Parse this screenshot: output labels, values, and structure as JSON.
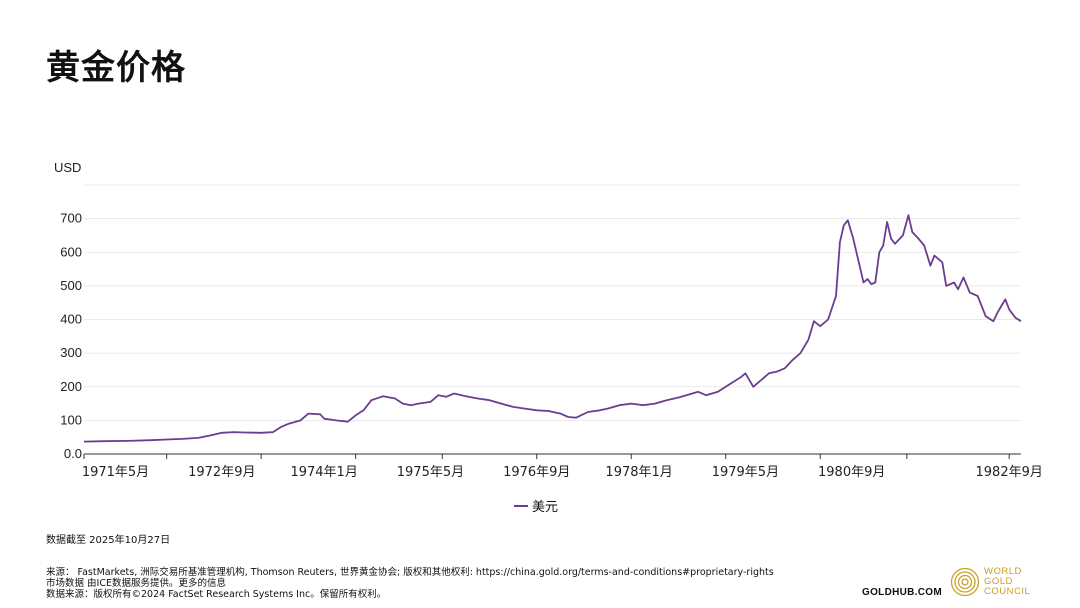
{
  "page": {
    "title": "黄金价格",
    "as_of": "数据截至 2025年10月27日",
    "footer_lines": [
      "来源： FastMarkets, 洲际交易所基准管理机构, Thomson Reuters, 世界黄金协会; 版权和其他权利: https://china.gold.org/terms-and-conditions#proprietary-rights",
      "市场数据 由ICE数据服务提供。更多的信息",
      "数据来源：版权所有©2024 FactSet Research Systems Inc。保留所有权利。"
    ],
    "brand_site": "GOLDHUB.COM",
    "logo_text": [
      "WORLD",
      "GOLD",
      "COUNCIL"
    ],
    "line_color": "#6b3d8f",
    "logo_color": "#c9a227"
  },
  "chart_data": {
    "type": "line",
    "title": "黄金价格",
    "ylabel": "USD",
    "xlabel": "",
    "ylim": [
      0,
      800
    ],
    "yticks": [
      0,
      100,
      200,
      300,
      400,
      500,
      600,
      700
    ],
    "ytick_labels": [
      "0.0",
      "100",
      "200",
      "300",
      "400",
      "500",
      "600",
      "700"
    ],
    "xlim": [
      1970.95,
      1982.85
    ],
    "x_tick_marks": [
      1970.95,
      1972.0,
      1973.2,
      1974.4,
      1975.5,
      1976.7,
      1977.9,
      1979.1,
      1980.3,
      1981.4,
      1982.7
    ],
    "x_labels": [
      {
        "x": 1971.35,
        "label": "1971年5月"
      },
      {
        "x": 1972.7,
        "label": "1972年9月"
      },
      {
        "x": 1974.0,
        "label": "1974年1月"
      },
      {
        "x": 1975.35,
        "label": "1975年5月"
      },
      {
        "x": 1976.7,
        "label": "1976年9月"
      },
      {
        "x": 1978.0,
        "label": "1978年1月"
      },
      {
        "x": 1979.35,
        "label": "1979年5月"
      },
      {
        "x": 1980.7,
        "label": "1980年9月"
      },
      {
        "x": 1982.7,
        "label": "1982年9月"
      }
    ],
    "grid": "horizontal",
    "legend_position": "bottom-center",
    "series": [
      {
        "name": "美元",
        "color": "#6b3d8f",
        "points": [
          [
            1970.95,
            37
          ],
          [
            1971.2,
            38
          ],
          [
            1971.5,
            39
          ],
          [
            1971.8,
            41
          ],
          [
            1972.0,
            43
          ],
          [
            1972.2,
            45
          ],
          [
            1972.4,
            48
          ],
          [
            1972.55,
            55
          ],
          [
            1972.7,
            63
          ],
          [
            1972.85,
            65
          ],
          [
            1973.0,
            64
          ],
          [
            1973.2,
            63
          ],
          [
            1973.35,
            65
          ],
          [
            1973.45,
            80
          ],
          [
            1973.55,
            90
          ],
          [
            1973.7,
            100
          ],
          [
            1973.8,
            120
          ],
          [
            1973.95,
            118
          ],
          [
            1974.0,
            105
          ],
          [
            1974.15,
            100
          ],
          [
            1974.3,
            96
          ],
          [
            1974.4,
            115
          ],
          [
            1974.5,
            130
          ],
          [
            1974.6,
            160
          ],
          [
            1974.75,
            172
          ],
          [
            1974.9,
            165
          ],
          [
            1975.0,
            150
          ],
          [
            1975.1,
            145
          ],
          [
            1975.2,
            150
          ],
          [
            1975.35,
            155
          ],
          [
            1975.45,
            175
          ],
          [
            1975.55,
            170
          ],
          [
            1975.65,
            180
          ],
          [
            1975.8,
            172
          ],
          [
            1975.95,
            165
          ],
          [
            1976.1,
            160
          ],
          [
            1976.25,
            150
          ],
          [
            1976.4,
            140
          ],
          [
            1976.55,
            135
          ],
          [
            1976.7,
            130
          ],
          [
            1976.85,
            128
          ],
          [
            1977.0,
            120
          ],
          [
            1977.1,
            110
          ],
          [
            1977.2,
            108
          ],
          [
            1977.35,
            125
          ],
          [
            1977.5,
            130
          ],
          [
            1977.6,
            135
          ],
          [
            1977.75,
            145
          ],
          [
            1977.9,
            150
          ],
          [
            1978.05,
            145
          ],
          [
            1978.2,
            150
          ],
          [
            1978.35,
            160
          ],
          [
            1978.5,
            168
          ],
          [
            1978.6,
            175
          ],
          [
            1978.75,
            185
          ],
          [
            1978.85,
            175
          ],
          [
            1979.0,
            185
          ],
          [
            1979.1,
            200
          ],
          [
            1979.2,
            215
          ],
          [
            1979.3,
            230
          ],
          [
            1979.35,
            240
          ],
          [
            1979.45,
            200
          ],
          [
            1979.55,
            220
          ],
          [
            1979.65,
            240
          ],
          [
            1979.75,
            245
          ],
          [
            1979.85,
            255
          ],
          [
            1979.95,
            280
          ],
          [
            1980.05,
            300
          ],
          [
            1980.15,
            340
          ],
          [
            1980.22,
            395
          ],
          [
            1980.3,
            380
          ],
          [
            1980.4,
            400
          ],
          [
            1980.5,
            470
          ],
          [
            1980.55,
            630
          ],
          [
            1980.6,
            680
          ],
          [
            1980.65,
            695
          ],
          [
            1980.72,
            640
          ],
          [
            1980.8,
            560
          ],
          [
            1980.85,
            510
          ],
          [
            1980.9,
            520
          ],
          [
            1980.95,
            505
          ],
          [
            1981.0,
            510
          ],
          [
            1981.05,
            600
          ],
          [
            1981.1,
            620
          ],
          [
            1981.15,
            690
          ],
          [
            1981.2,
            640
          ],
          [
            1981.25,
            625
          ],
          [
            1981.35,
            650
          ],
          [
            1981.42,
            710
          ],
          [
            1981.47,
            660
          ],
          [
            1981.55,
            640
          ],
          [
            1981.62,
            620
          ],
          [
            1981.7,
            560
          ],
          [
            1981.75,
            590
          ],
          [
            1981.85,
            570
          ],
          [
            1981.9,
            500
          ],
          [
            1982.0,
            510
          ],
          [
            1982.05,
            490
          ],
          [
            1982.12,
            525
          ],
          [
            1982.2,
            480
          ],
          [
            1982.3,
            470
          ],
          [
            1982.4,
            410
          ],
          [
            1982.5,
            395
          ],
          [
            1982.55,
            420
          ],
          [
            1982.6,
            440
          ],
          [
            1982.65,
            460
          ],
          [
            1982.7,
            430
          ],
          [
            1982.78,
            405
          ],
          [
            1982.85,
            395
          ]
        ]
      }
    ]
  }
}
